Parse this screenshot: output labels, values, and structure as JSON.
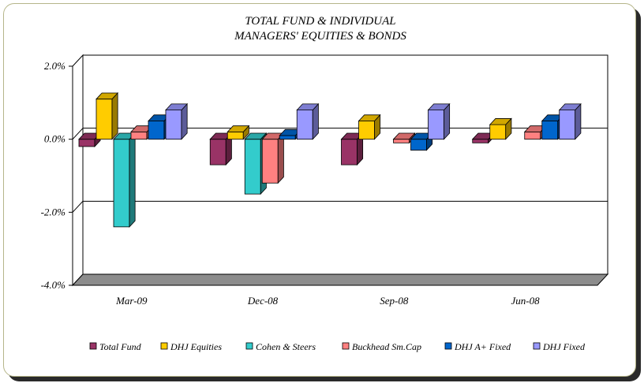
{
  "chart_data": {
    "type": "bar",
    "title": "TOTAL FUND  & INDIVIDUAL",
    "subtitle": "MANAGERS' EQUITIES & BONDS",
    "categories": [
      "Mar-09",
      "Dec-08",
      "Sep-08",
      "Jun-08"
    ],
    "ylim": [
      -4.0,
      2.0
    ],
    "yticks": [
      "2.0%",
      "0.0%",
      "-2.0%",
      "-4.0%"
    ],
    "ytick_values": [
      2.0,
      0.0,
      -2.0,
      -4.0
    ],
    "grid": true,
    "legend_position": "bottom",
    "series": [
      {
        "name": "Total Fund",
        "color": "#993366",
        "values": [
          -0.2,
          -0.7,
          -0.7,
          -0.1
        ]
      },
      {
        "name": "DHJ Equities",
        "color": "#ffcc00",
        "values": [
          1.1,
          0.2,
          0.5,
          0.4
        ]
      },
      {
        "name": "Cohen & Steers",
        "color": "#33cccc",
        "values": [
          -2.4,
          -1.5,
          null,
          null
        ]
      },
      {
        "name": "Buckhead Sm.Cap",
        "color": "#ff8080",
        "values": [
          0.2,
          -1.2,
          -0.1,
          0.2
        ]
      },
      {
        "name": "DHJ A+ Fixed",
        "color": "#0066cc",
        "values": [
          0.5,
          0.1,
          -0.3,
          0.5
        ]
      },
      {
        "name": "DHJ Fixed",
        "color": "#9999ff",
        "values": [
          0.8,
          0.8,
          0.8,
          0.8
        ]
      }
    ]
  }
}
